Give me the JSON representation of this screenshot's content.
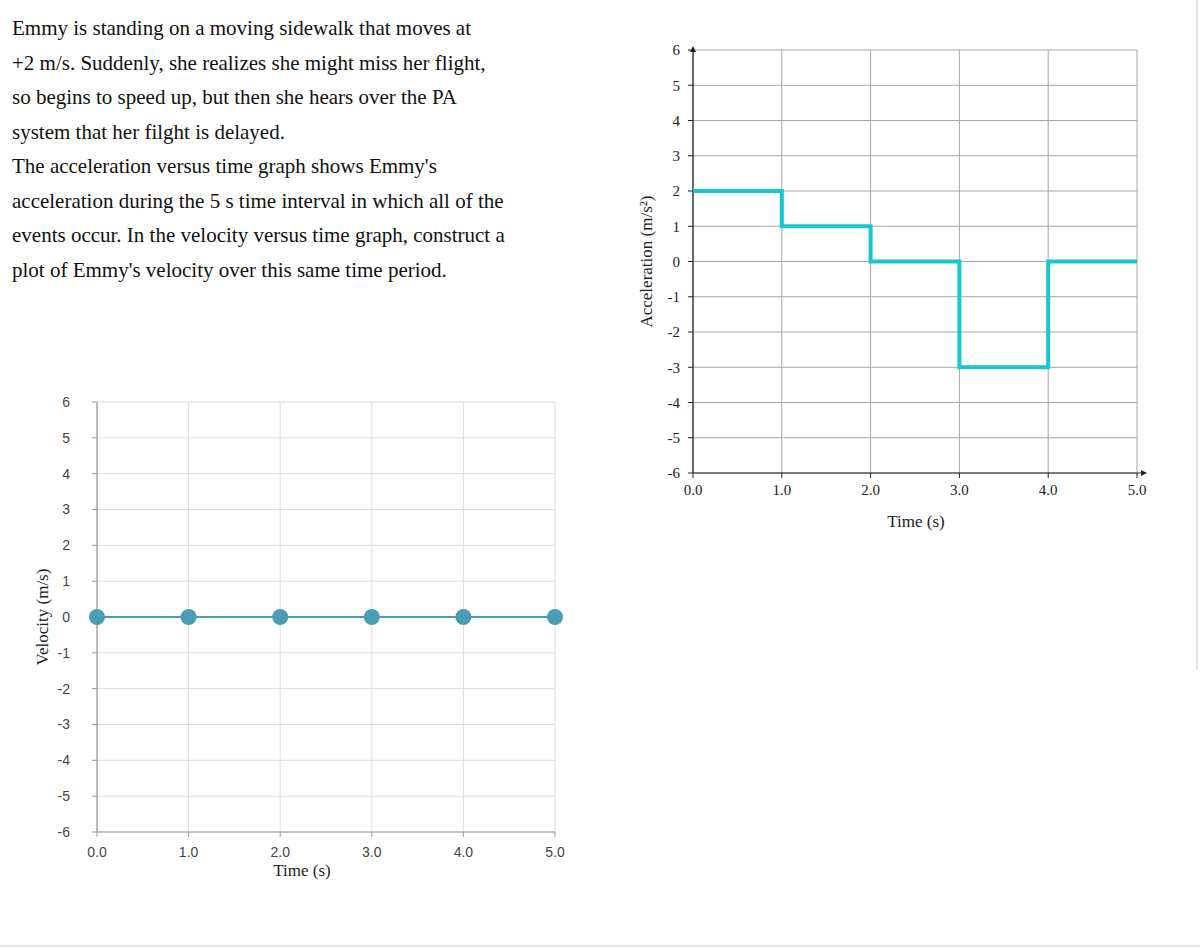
{
  "problem": {
    "lines": [
      "Emmy is standing on a moving sidewalk that moves at",
      "+2 m/s. Suddenly, she realizes she might miss her flight,",
      "so begins to speed up, but then she hears over the PA",
      "system that her filght is delayed.",
      "The acceleration versus time graph shows Emmy's",
      "acceleration during the 5 s time interval in which all of the",
      "events occur. In the velocity versus time graph, construct a",
      "plot of Emmy's velocity over this same time period."
    ]
  },
  "chart_data": [
    {
      "type": "line",
      "x_label": "Time (s)",
      "y_label": "Velocity (m/s)",
      "xlim": [
        0,
        5
      ],
      "ylim": [
        -6,
        6
      ],
      "xticks": [
        {
          "value": 0,
          "label": "0.0"
        },
        {
          "value": 1,
          "label": "1.0"
        },
        {
          "value": 2,
          "label": "2.0"
        },
        {
          "value": 3,
          "label": "3.0"
        },
        {
          "value": 4,
          "label": "4.0"
        },
        {
          "value": 5,
          "label": "5.0"
        }
      ],
      "yticks": [
        -6,
        -5,
        -4,
        -3,
        -2,
        -1,
        0,
        1,
        2,
        3,
        4,
        5,
        6
      ],
      "grid": true,
      "x": [
        0,
        1,
        2,
        3,
        4,
        5
      ],
      "series": [
        {
          "color": "#4a9db3",
          "marker": "circle",
          "values": [
            0,
            0,
            0,
            0,
            0,
            0
          ]
        }
      ]
    },
    {
      "type": "line",
      "x_label": "Time (s)",
      "y_label": "Acceleration (m/s²)",
      "xlim": [
        0,
        5
      ],
      "ylim": [
        -6,
        6
      ],
      "xticks": [
        {
          "value": 0,
          "label": "0.0"
        },
        {
          "value": 1,
          "label": "1.0"
        },
        {
          "value": 2,
          "label": "2.0"
        },
        {
          "value": 3,
          "label": "3.0"
        },
        {
          "value": 4,
          "label": "4.0"
        },
        {
          "value": 5,
          "label": "5.0"
        }
      ],
      "yticks": [
        -6,
        -5,
        -4,
        -3,
        -2,
        -1,
        0,
        1,
        2,
        3,
        4,
        5,
        6
      ],
      "grid": true,
      "x": [
        0,
        1,
        1,
        2,
        2,
        3,
        3,
        4,
        4,
        5
      ],
      "series": [
        {
          "color": "#19c6cf",
          "marker": "none",
          "values": [
            2,
            2,
            1,
            1,
            0,
            0,
            -3,
            -3,
            0,
            0
          ]
        }
      ]
    }
  ]
}
